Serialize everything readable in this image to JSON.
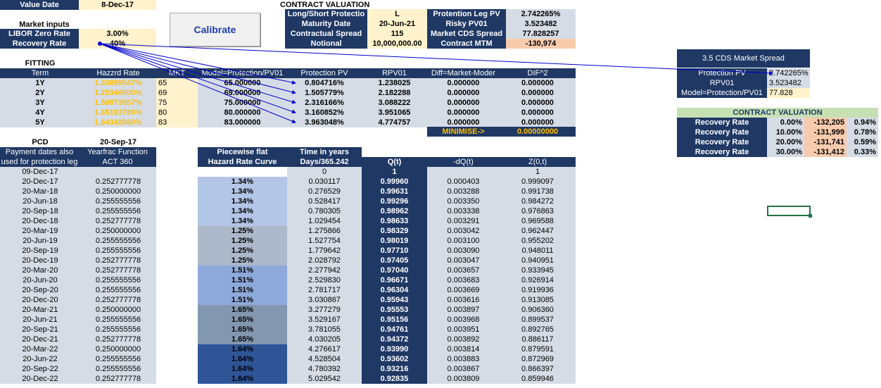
{
  "top": {
    "value_date_label": "Value Date",
    "value_date": "8-Dec-17",
    "market_inputs_label": "Market inputs",
    "libor_label": "LIBOR Zero Rate",
    "libor_value": "3.00%",
    "recovery_label": "Recovery Rate",
    "recovery_value": "40%",
    "calibrate_label": "Calibrate"
  },
  "contract": {
    "title": "CONTRACT VALUATION",
    "left_labels": [
      "Long/Short Protectio",
      "Maturity Date",
      "Contractual Spread",
      "Notional"
    ],
    "left_values": [
      "L",
      "20-Jun-21",
      "115",
      "10,000,000.00"
    ],
    "right_labels": [
      "Protention Leg PV",
      "Risky PV01",
      "Market CDS Spread",
      "Contract MTM"
    ],
    "right_values": [
      "2.742265%",
      "3.523482",
      "77.828257",
      "-130,974"
    ]
  },
  "fitting": {
    "title": "FITTING",
    "headers": [
      "Term",
      "Hazzrd Rate",
      "MKT",
      "Model=Protection/PV01",
      "Protection PV",
      "RPV01",
      "Diff=Market-Moder",
      "DIF^2"
    ],
    "rows": [
      [
        "1Y",
        "1.33699547%",
        "65",
        "65.000000",
        "0.804716%",
        "1.238025",
        "0.000000",
        "0.000000"
      ],
      [
        "2Y",
        "1.25346000%",
        "69",
        "69.000000",
        "1.505779%",
        "2.182288",
        "0.000000",
        "0.000000"
      ],
      [
        "3Y",
        "1.50973857%",
        "75",
        "75.000000",
        "2.316166%",
        "3.088222",
        "0.000000",
        "0.000000"
      ],
      [
        "4Y",
        "1.65193780%",
        "80",
        "80.000000",
        "3.160852%",
        "3.951065",
        "0.000000",
        "0.000000"
      ],
      [
        "5Y",
        "1.64342860%",
        "83",
        "83.000000",
        "3.963048%",
        "4.774757",
        "0.000000",
        "0.000000"
      ]
    ],
    "minimise_label": "MINIMISE->",
    "minimise_value": "0.00000000"
  },
  "cds_box": {
    "title": "3.5 CDS Market Spread",
    "labels": [
      "Protection PV",
      "RPV01",
      "Model=Protection/PV01"
    ],
    "values": [
      "2.742265%",
      "3.523482",
      "77.828"
    ]
  },
  "contract2": {
    "title": "CONTRACT VALUATION",
    "rows": [
      [
        "Recovery Rate",
        "0.00%",
        "-132,205",
        "0.94%"
      ],
      [
        "Recovery Rate",
        "10.00%",
        "-131,999",
        "0.78%"
      ],
      [
        "Recovery Rate",
        "20.00%",
        "-131,741",
        "0.59%"
      ],
      [
        "Recovery Rate",
        "30.00%",
        "-131,412",
        "0.33%"
      ]
    ]
  },
  "schedule": {
    "pcd_label": "PCD",
    "pcd_value": "20-Sep-17",
    "h_pay1": "Payment dates also",
    "h_pay2": "used for protection leg",
    "h_yf1": "Yearfrac Function",
    "h_yf2": "ACT 360",
    "h_hz1": "Piecewise flat",
    "h_hz2": "Hazard Rate Curve",
    "h_t1": "Time in years",
    "h_t2": "Days/365.242",
    "h_q": "Q(t)",
    "h_dq": "-dQ(t)",
    "h_z": "Z(0,t)",
    "first_row": [
      "09-Dec-17",
      "",
      "",
      "0",
      "1",
      "",
      "1"
    ],
    "rows": [
      [
        "20-Dec-17",
        "0.252777778",
        "1.34%",
        "0.030117",
        "0.99960",
        "0.000403",
        "0.999097"
      ],
      [
        "20-Mar-18",
        "0.250000000",
        "1.34%",
        "0.276529",
        "0.99631",
        "0.003288",
        "0.991738"
      ],
      [
        "20-Jun-18",
        "0.255555556",
        "1.34%",
        "0.528417",
        "0.99296",
        "0.003350",
        "0.984272"
      ],
      [
        "20-Sep-18",
        "0.255555556",
        "1.34%",
        "0.780305",
        "0.98962",
        "0.003338",
        "0.976863"
      ],
      [
        "20-Dec-18",
        "0.252777778",
        "1.34%",
        "1.029454",
        "0.98633",
        "0.003291",
        "0.969588"
      ],
      [
        "20-Mar-19",
        "0.250000000",
        "1.25%",
        "1.275866",
        "0.98329",
        "0.003042",
        "0.962447"
      ],
      [
        "20-Jun-19",
        "0.255555556",
        "1.25%",
        "1.527754",
        "0.98019",
        "0.003100",
        "0.955202"
      ],
      [
        "20-Sep-19",
        "0.255555556",
        "1.25%",
        "1.779642",
        "0.97710",
        "0.003090",
        "0.948011"
      ],
      [
        "20-Dec-19",
        "0.252777778",
        "1.25%",
        "2.028792",
        "0.97405",
        "0.003047",
        "0.940951"
      ],
      [
        "20-Mar-20",
        "0.252777778",
        "1.51%",
        "2.277942",
        "0.97040",
        "0.003657",
        "0.933945"
      ],
      [
        "20-Jun-20",
        "0.255555556",
        "1.51%",
        "2.529830",
        "0.96671",
        "0.003683",
        "0.926914"
      ],
      [
        "20-Sep-20",
        "0.255555556",
        "1.51%",
        "2.781717",
        "0.96304",
        "0.003669",
        "0.919936"
      ],
      [
        "20-Dec-20",
        "0.252777778",
        "1.51%",
        "3.030867",
        "0.95943",
        "0.003616",
        "0.913085"
      ],
      [
        "20-Mar-21",
        "0.250000000",
        "1.65%",
        "3.277279",
        "0.95553",
        "0.003897",
        "0.906360"
      ],
      [
        "20-Jun-21",
        "0.255555556",
        "1.65%",
        "3.529167",
        "0.95156",
        "0.003968",
        "0.899537"
      ],
      [
        "20-Sep-21",
        "0.255555556",
        "1.65%",
        "3.781055",
        "0.94761",
        "0.003951",
        "0.892765"
      ],
      [
        "20-Dec-21",
        "0.252777778",
        "1.65%",
        "4.030205",
        "0.94372",
        "0.003892",
        "0.886117"
      ],
      [
        "20-Mar-22",
        "0.250000000",
        "1.64%",
        "4.276617",
        "0.93990",
        "0.003814",
        "0.879591"
      ],
      [
        "20-Jun-22",
        "0.255555556",
        "1.64%",
        "4.528504",
        "0.93602",
        "0.003883",
        "0.872969"
      ],
      [
        "20-Sep-22",
        "0.255555556",
        "1.64%",
        "4.780392",
        "0.93216",
        "0.003867",
        "0.866397"
      ],
      [
        "20-Dec-22",
        "0.252777778",
        "1.64%",
        "5.029542",
        "0.92835",
        "0.003809",
        "0.859946"
      ]
    ],
    "hazard_colors": [
      "#b4c6e7",
      "#acb9ca",
      "#8ea9db",
      "#8497b0",
      "#2f5597"
    ]
  }
}
